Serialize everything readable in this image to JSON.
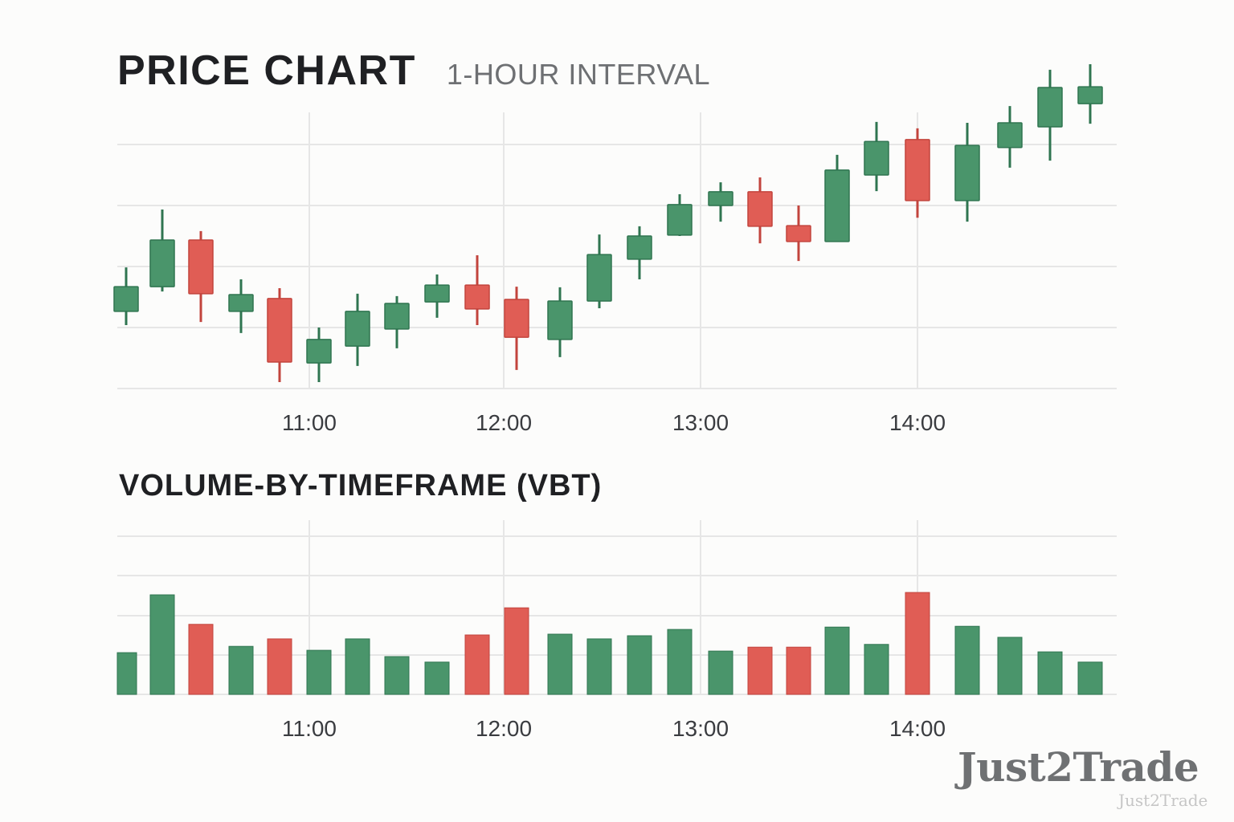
{
  "header": {
    "title": "PRICE CHART",
    "subtitle": "1-HOUR INTERVAL"
  },
  "volume_section": {
    "title": "VOLUME-BY-TIMEFRAME (VBT)"
  },
  "watermark": {
    "large": "Just2Trade",
    "small": "Just2Trade"
  },
  "colors": {
    "up": "#4a956b",
    "up_border": "#2f7550",
    "down": "#e05d55",
    "down_border": "#c2443d",
    "grid": "#e6e6e6",
    "background": "#fcfcfb"
  },
  "chart_data": [
    {
      "type": "candlestick",
      "title": "PRICE CHART",
      "subtitle": "1-HOUR INTERVAL",
      "xlabel": "",
      "ylabel": "",
      "x_tick_labels": [
        "11:00",
        "12:00",
        "13:00",
        "14:00"
      ],
      "y_tick_labels": [],
      "ylim": [
        100,
        110.8
      ],
      "grid": true,
      "legend": null,
      "candles": [
        {
          "o": 102.53,
          "h": 103.97,
          "l": 102.08,
          "c": 103.34
        },
        {
          "o": 103.34,
          "h": 105.87,
          "l": 103.18,
          "c": 104.87
        },
        {
          "o": 104.87,
          "h": 105.16,
          "l": 102.18,
          "c": 103.11
        },
        {
          "o": 102.53,
          "h": 103.58,
          "l": 101.82,
          "c": 103.08
        },
        {
          "o": 102.95,
          "h": 103.29,
          "l": 100.21,
          "c": 100.87
        },
        {
          "o": 100.84,
          "h": 102.0,
          "l": 100.21,
          "c": 101.61
        },
        {
          "o": 101.39,
          "h": 103.11,
          "l": 100.74,
          "c": 102.53
        },
        {
          "o": 101.95,
          "h": 103.03,
          "l": 101.32,
          "c": 102.79
        },
        {
          "o": 102.84,
          "h": 103.74,
          "l": 102.32,
          "c": 103.39
        },
        {
          "o": 103.39,
          "h": 104.37,
          "l": 102.08,
          "c": 102.61
        },
        {
          "o": 102.92,
          "h": 103.34,
          "l": 100.61,
          "c": 101.68
        },
        {
          "o": 101.61,
          "h": 103.32,
          "l": 101.03,
          "c": 102.87
        },
        {
          "o": 102.87,
          "h": 105.05,
          "l": 102.63,
          "c": 104.39
        },
        {
          "o": 104.24,
          "h": 105.32,
          "l": 103.58,
          "c": 105.0
        },
        {
          "o": 105.03,
          "h": 106.37,
          "l": 105.0,
          "c": 106.03
        },
        {
          "o": 106.0,
          "h": 106.76,
          "l": 105.47,
          "c": 106.45
        },
        {
          "o": 106.45,
          "h": 106.92,
          "l": 104.76,
          "c": 105.32
        },
        {
          "o": 105.34,
          "h": 106.0,
          "l": 104.18,
          "c": 104.82
        },
        {
          "o": 104.82,
          "h": 107.66,
          "l": 104.82,
          "c": 107.16
        },
        {
          "o": 107.0,
          "h": 108.74,
          "l": 106.47,
          "c": 108.1
        },
        {
          "o": 108.16,
          "h": 108.53,
          "l": 105.6,
          "c": 106.16
        },
        {
          "o": 106.16,
          "h": 108.71,
          "l": 105.47,
          "c": 107.97
        },
        {
          "o": 107.9,
          "h": 109.26,
          "l": 107.24,
          "c": 108.71
        },
        {
          "o": 108.58,
          "h": 110.45,
          "l": 107.47,
          "c": 109.87
        },
        {
          "o": 109.34,
          "h": 110.63,
          "l": 108.68,
          "c": 109.89
        }
      ]
    },
    {
      "type": "bar",
      "title": "VOLUME-BY-TIMEFRAME (VBT)",
      "xlabel": "",
      "ylabel": "",
      "x_tick_labels": [
        "11:00",
        "12:00",
        "13:00",
        "14:00"
      ],
      "ylim": [
        0,
        4.4
      ],
      "grid": true,
      "legend": null,
      "values": [
        1.06,
        2.53,
        1.78,
        1.22,
        1.41,
        1.12,
        1.41,
        0.96,
        0.82,
        1.51,
        2.2,
        1.53,
        1.41,
        1.49,
        1.65,
        1.1,
        1.2,
        1.2,
        1.71,
        1.27,
        2.59,
        1.73,
        1.45,
        1.08,
        0.82
      ],
      "colors": [
        "up",
        "up",
        "down",
        "up",
        "down",
        "up",
        "up",
        "up",
        "up",
        "down",
        "down",
        "up",
        "up",
        "up",
        "up",
        "up",
        "down",
        "down",
        "up",
        "up",
        "down",
        "up",
        "up",
        "up",
        "up"
      ]
    }
  ]
}
